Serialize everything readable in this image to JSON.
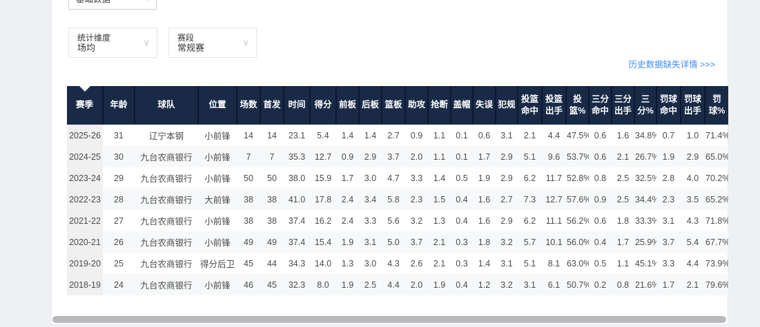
{
  "colors": {
    "page_bg": "#eef0f3",
    "card_bg": "#ffffff",
    "header_bg": "#182a46",
    "header_divider": "#0c1830",
    "link_blue": "#3d8df5",
    "zebra_row": "#f7f8f9",
    "season_col_bg": "#f0f0f1"
  },
  "icons": {
    "dropdown_caret": "▾",
    "chevron_down": "∨"
  },
  "top_dropdown": {
    "value": "基础数据"
  },
  "filters": [
    {
      "label": "统计维度",
      "value": "场均"
    },
    {
      "label": "赛段",
      "value": "常规赛"
    }
  ],
  "link": {
    "text": "历史数据缺失详情 >>>"
  },
  "table": {
    "columns": [
      "赛季",
      "年龄",
      "球队",
      "位置",
      "场数",
      "首发",
      "时间",
      "得分",
      "前板",
      "后板",
      "篮板",
      "助攻",
      "抢断",
      "盖帽",
      "失误",
      "犯规",
      "投篮命中",
      "投篮出手",
      "投篮%",
      "三分命中",
      "三分出手",
      "三分%",
      "罚球命中",
      "罚球出手",
      "罚球%"
    ],
    "rows": [
      [
        "2025-26",
        "31",
        "辽宁本钢",
        "小前锋",
        "14",
        "14",
        "23.1",
        "5.4",
        "1.4",
        "1.4",
        "2.7",
        "0.9",
        "1.1",
        "0.1",
        "0.6",
        "3.1",
        "2.1",
        "4.4",
        "47.5%",
        "0.6",
        "1.6",
        "34.8%",
        "0.7",
        "1.0",
        "71.4%"
      ],
      [
        "2024-25",
        "30",
        "九台农商银行",
        "小前锋",
        "7",
        "7",
        "35.3",
        "12.7",
        "0.9",
        "2.9",
        "3.7",
        "2.0",
        "1.1",
        "0.1",
        "1.7",
        "2.9",
        "5.1",
        "9.6",
        "53.7%",
        "0.6",
        "2.1",
        "26.7%",
        "1.9",
        "2.9",
        "65.0%"
      ],
      [
        "2023-24",
        "29",
        "九台农商银行",
        "小前锋",
        "50",
        "50",
        "38.0",
        "15.9",
        "1.7",
        "3.0",
        "4.7",
        "3.3",
        "1.4",
        "0.5",
        "1.9",
        "2.9",
        "6.2",
        "11.7",
        "52.8%",
        "0.8",
        "2.5",
        "32.5%",
        "2.8",
        "4.0",
        "70.2%"
      ],
      [
        "2022-23",
        "28",
        "九台农商银行",
        "大前锋",
        "38",
        "38",
        "41.0",
        "17.8",
        "2.4",
        "3.4",
        "5.8",
        "2.3",
        "1.5",
        "0.4",
        "1.6",
        "2.7",
        "7.3",
        "12.7",
        "57.6%",
        "0.9",
        "2.5",
        "34.4%",
        "2.3",
        "3.5",
        "65.2%"
      ],
      [
        "2021-22",
        "27",
        "九台农商银行",
        "小前锋",
        "38",
        "38",
        "37.4",
        "16.2",
        "2.4",
        "3.3",
        "5.6",
        "3.2",
        "1.3",
        "0.4",
        "1.6",
        "2.9",
        "6.2",
        "11.1",
        "56.2%",
        "0.6",
        "1.8",
        "33.3%",
        "3.1",
        "4.3",
        "71.8%"
      ],
      [
        "2020-21",
        "26",
        "九台农商银行",
        "小前锋",
        "49",
        "49",
        "37.4",
        "15.4",
        "1.9",
        "3.1",
        "5.0",
        "3.7",
        "2.1",
        "0.3",
        "1.8",
        "3.2",
        "5.7",
        "10.1",
        "56.0%",
        "0.4",
        "1.7",
        "25.9%",
        "3.7",
        "5.4",
        "67.7%"
      ],
      [
        "2019-20",
        "25",
        "九台农商银行",
        "得分后卫",
        "45",
        "44",
        "34.3",
        "14.0",
        "1.3",
        "3.0",
        "4.3",
        "2.6",
        "2.1",
        "0.3",
        "1.4",
        "3.1",
        "5.1",
        "8.1",
        "63.0%",
        "0.5",
        "1.1",
        "45.1%",
        "3.3",
        "4.4",
        "73.9%"
      ],
      [
        "2018-19",
        "24",
        "九台农商银行",
        "小前锋",
        "46",
        "45",
        "32.3",
        "8.0",
        "1.9",
        "2.5",
        "4.4",
        "2.0",
        "1.9",
        "0.4",
        "1.2",
        "3.2",
        "3.1",
        "6.1",
        "50.7%",
        "0.2",
        "0.8",
        "21.6%",
        "1.7",
        "2.1",
        "79.6%"
      ]
    ]
  }
}
